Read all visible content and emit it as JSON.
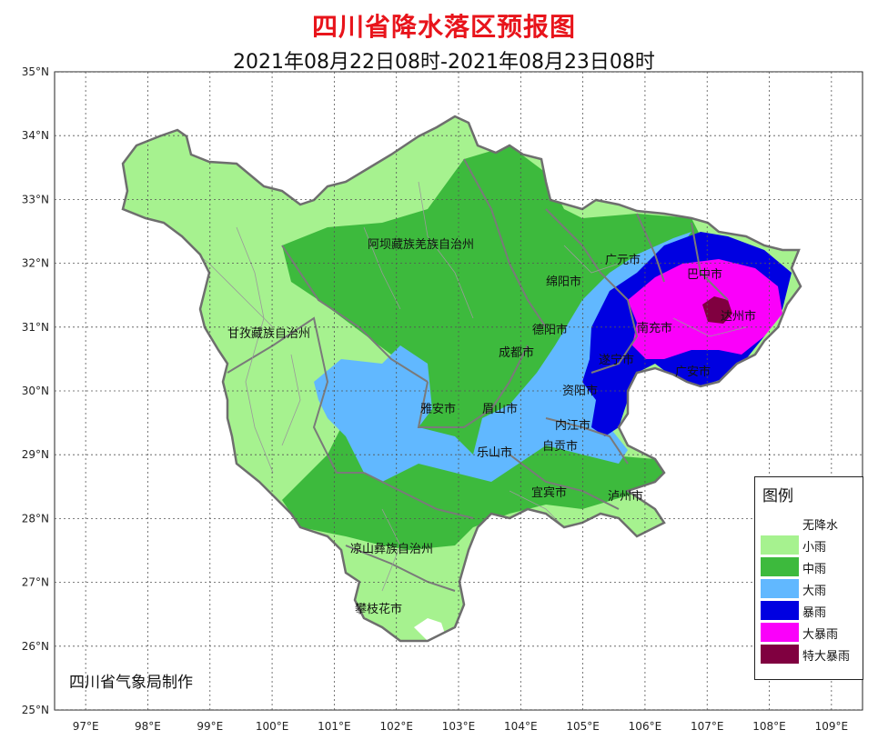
{
  "title": "四川省降水落区预报图",
  "subtitle": "2021年08月22日08时-2021年08月23日08时",
  "credit": "四川省气象局制作",
  "axes": {
    "lat_labels": [
      "35°N",
      "34°N",
      "33°N",
      "32°N",
      "31°N",
      "30°N",
      "29°N",
      "28°N",
      "27°N",
      "26°N",
      "25°N"
    ],
    "lon_labels": [
      "97°E",
      "98°E",
      "99°E",
      "100°E",
      "101°E",
      "102°E",
      "103°E",
      "104°E",
      "105°E",
      "106°E",
      "107°E",
      "108°E",
      "109°E"
    ],
    "lat_range": [
      25,
      35
    ],
    "lon_range": [
      96.5,
      109.5
    ],
    "grid": true
  },
  "regions": [
    {
      "label": "阿坝藏族羌族自治州"
    },
    {
      "label": "甘孜藏族自治州"
    },
    {
      "label": "凉山彝族自治州"
    },
    {
      "label": "攀枝花市"
    },
    {
      "label": "雅安市"
    },
    {
      "label": "眉山市"
    },
    {
      "label": "乐山市"
    },
    {
      "label": "成都市"
    },
    {
      "label": "德阳市"
    },
    {
      "label": "绵阳市"
    },
    {
      "label": "广元市"
    },
    {
      "label": "巴中市"
    },
    {
      "label": "达州市"
    },
    {
      "label": "南充市"
    },
    {
      "label": "广安市"
    },
    {
      "label": "遂宁市"
    },
    {
      "label": "资阳市"
    },
    {
      "label": "内江市"
    },
    {
      "label": "自贡市"
    },
    {
      "label": "宜宾市"
    },
    {
      "label": "泸州市"
    }
  ],
  "legend": {
    "title": "图例",
    "items": [
      {
        "label": "无降水",
        "color": "#ffffff"
      },
      {
        "label": "小雨",
        "color": "#a6f28f"
      },
      {
        "label": "中雨",
        "color": "#3dba3d"
      },
      {
        "label": "大雨",
        "color": "#61b8ff"
      },
      {
        "label": "暴雨",
        "color": "#0000e1"
      },
      {
        "label": "大暴雨",
        "color": "#fa00fa"
      },
      {
        "label": "特大暴雨",
        "color": "#800040"
      }
    ]
  }
}
